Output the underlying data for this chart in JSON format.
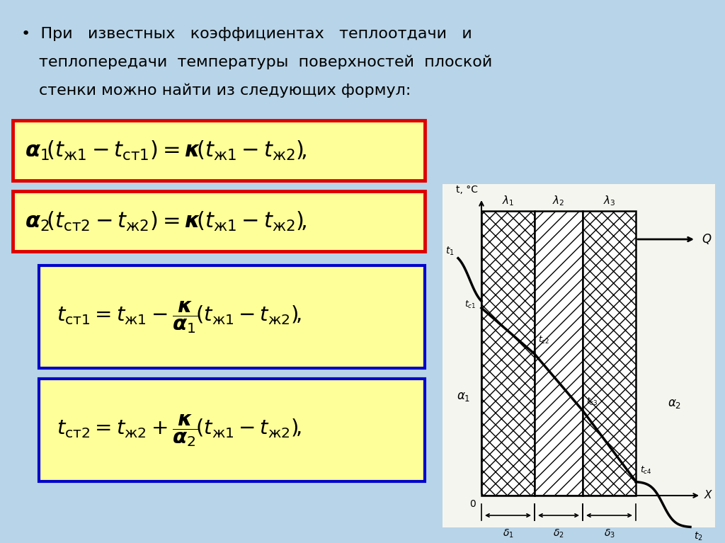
{
  "bg_color": "#b8d4e8",
  "formula1_box_color": "#ffff99",
  "formula1_border_color": "#dd0000",
  "formula2_box_color": "#ffff99",
  "formula2_border_color": "#dd0000",
  "formula3_box_color": "#ffff99",
  "formula3_border_color": "#0000cc",
  "formula4_box_color": "#ffff99",
  "formula4_border_color": "#0000cc",
  "diagram_bg": "#f5f5f0",
  "text_line1": "•  При   известных   коэффициентах   теплоотдачи   и",
  "text_line2": "теплопередачи  температуры  поверхностей  плоской",
  "text_line3": "стенки можно найти из следующих формул:"
}
